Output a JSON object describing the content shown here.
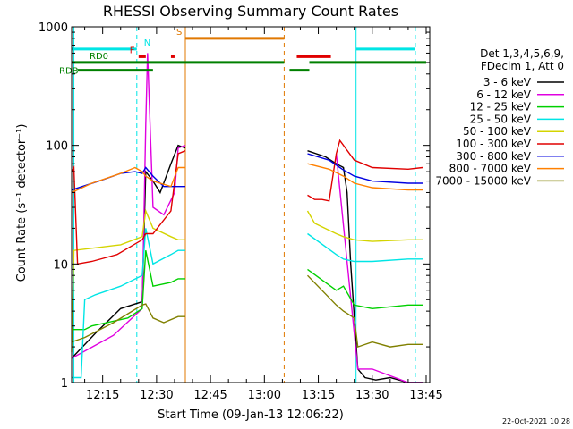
{
  "chart_data": {
    "type": "line",
    "title": "RHESSI Observing Summary Count Rates",
    "xlabel": "Start Time (09-Jan-13 12:06:22)",
    "ylabel": "Count Rate (s⁻¹ detector⁻¹)",
    "yscale": "log",
    "ylim": [
      1,
      1000
    ],
    "xlim": [
      "12:06:22",
      "13:46:00"
    ],
    "x_ticks": [
      "12:15",
      "12:30",
      "12:45",
      "13:00",
      "13:15",
      "13:30",
      "13:45"
    ],
    "y_ticks": [
      "1",
      "10",
      "100",
      "1000"
    ],
    "legend_header": [
      "Det 1,3,4,5,6,9,",
      "FDecim 1, Att 0"
    ],
    "legend_position": "right",
    "timestamp": "22-Oct-2021 10:28",
    "data_gap": [
      "12:38:00",
      "13:12:00"
    ],
    "vertical_markers": [
      {
        "time": "12:07:00",
        "color": "#00e5e5",
        "style": "solid"
      },
      {
        "time": "12:24:30",
        "color": "#00e5e5",
        "style": "dashed"
      },
      {
        "time": "12:38:00",
        "color": "#e07800",
        "style": "solid"
      },
      {
        "time": "13:05:30",
        "color": "#e07800",
        "style": "dashed"
      },
      {
        "time": "13:25:30",
        "color": "#00e5e5",
        "style": "solid"
      },
      {
        "time": "13:42:00",
        "color": "#00e5e5",
        "style": "dashed"
      }
    ],
    "flag_bars": [
      {
        "label": "N",
        "color": "#00e5e5",
        "label_color": "#00e5e5",
        "y": 650,
        "segments": [
          [
            "12:06:22",
            "12:24:30"
          ],
          [
            "13:25:30",
            "13:42:00"
          ]
        ]
      },
      {
        "label": "S",
        "color": "#e07800",
        "label_color": "#e07800",
        "y": 800,
        "segments": [
          [
            "12:38:00",
            "13:05:30"
          ]
        ]
      },
      {
        "label": "F",
        "color": "#e00000",
        "label_color": "#e00000",
        "y": 560,
        "segments": [
          [
            "12:25:00",
            "12:27:00"
          ],
          [
            "12:34:00",
            "12:35:00"
          ],
          [
            "13:09:00",
            "13:18:30"
          ]
        ]
      },
      {
        "label": "RD0",
        "color": "#008000",
        "label_color": "#008000",
        "y": 500,
        "segments": [
          [
            "12:06:22",
            "13:05:30"
          ],
          [
            "13:12:30",
            "13:45:00"
          ]
        ]
      },
      {
        "label": "RDB",
        "color": "#008000",
        "label_color": "#008000",
        "y": 430,
        "segments": [
          [
            "12:08:00",
            "12:29:00"
          ],
          [
            "13:07:00",
            "13:12:30"
          ]
        ]
      }
    ],
    "series": [
      {
        "name": "3 - 6 keV",
        "color": "#000000",
        "x": [
          "12:06:22",
          "12:13",
          "12:20",
          "12:26",
          "12:27",
          "12:29",
          "12:31",
          "12:34",
          "12:36",
          "12:38",
          "13:12",
          "13:17",
          "13:20",
          "13:22",
          "13:23",
          "13:24",
          "13:26",
          "13:28",
          "13:31",
          "13:35",
          "13:40",
          "13:44"
        ],
        "y": [
          1.6,
          2.6,
          4.2,
          4.8,
          60,
          50,
          40,
          70,
          100,
          95,
          90,
          80,
          70,
          65,
          40,
          10,
          1.3,
          1.1,
          1.05,
          1.1,
          1.0,
          1.0
        ]
      },
      {
        "name": "6 - 12 keV",
        "color": "#e000e0",
        "x": [
          "12:06:22",
          "12:18",
          "12:26",
          "12:27",
          "12:27.5",
          "12:29",
          "12:32",
          "12:35",
          "12:36",
          "12:38",
          "13:20",
          "13:26",
          "13:30",
          "13:40",
          "13:44"
        ],
        "y": [
          1.6,
          2.5,
          4.2,
          150,
          600,
          30,
          26,
          40,
          95,
          100,
          85,
          1.3,
          1.3,
          1.0,
          1.0
        ]
      },
      {
        "name": "12 - 25 keV",
        "color": "#00d000",
        "x": [
          "12:06:22",
          "12:10",
          "12:12",
          "12:22",
          "12:26",
          "12:27",
          "12:29",
          "12:34",
          "12:36",
          "12:38",
          "13:12",
          "13:20",
          "13:22",
          "13:25",
          "13:30",
          "13:40",
          "13:44"
        ],
        "y": [
          2.8,
          2.8,
          3.0,
          3.5,
          4.2,
          13,
          6.5,
          7.0,
          7.5,
          7.5,
          9,
          6,
          6.5,
          4.5,
          4.2,
          4.5,
          4.5
        ]
      },
      {
        "name": "25 - 50 keV",
        "color": "#00e5e5",
        "x": [
          "12:06:22",
          "12:09",
          "12:10",
          "12:13",
          "12:20",
          "12:26",
          "12:27",
          "12:29",
          "12:34",
          "12:36",
          "12:38",
          "13:12",
          "13:20",
          "13:22",
          "13:25",
          "13:30",
          "13:40",
          "13:44"
        ],
        "y": [
          1.1,
          1.1,
          5,
          5.5,
          6.5,
          8,
          20,
          10,
          12,
          13,
          13,
          18,
          12,
          11,
          10.5,
          10.5,
          11,
          11
        ]
      },
      {
        "name": "50 - 100 keV",
        "color": "#d4d400",
        "x": [
          "12:06:22",
          "12:07",
          "12:20",
          "12:26",
          "12:27",
          "12:29",
          "12:34",
          "12:36",
          "12:38",
          "13:12",
          "13:14",
          "13:20",
          "13:22",
          "13:25",
          "13:30",
          "13:40",
          "13:44"
        ],
        "y": [
          1.8,
          13,
          14.5,
          17,
          28,
          20,
          17,
          16,
          16,
          28,
          22,
          18,
          17,
          16,
          15.5,
          16,
          16
        ]
      },
      {
        "name": "100 - 300 keV",
        "color": "#e00000",
        "x": [
          "12:06:22",
          "12:07",
          "12:08",
          "12:12",
          "12:19",
          "12:26",
          "12:27",
          "12:29",
          "12:34",
          "12:36",
          "12:38",
          "13:12",
          "13:14",
          "13:16",
          "13:18",
          "13:20",
          "13:21",
          "13:25",
          "13:30",
          "13:40",
          "13:44"
        ],
        "y": [
          60,
          65,
          10,
          10.5,
          12,
          16,
          18,
          18,
          28,
          85,
          90,
          38,
          35,
          35,
          34,
          85,
          110,
          75,
          65,
          63,
          65
        ]
      },
      {
        "name": "300 - 800 keV",
        "color": "#0000e0",
        "x": [
          "12:06:22",
          "12:14",
          "12:20",
          "12:24",
          "12:26",
          "12:27",
          "12:29",
          "12:32",
          "12:35",
          "12:38",
          "13:12",
          "13:18",
          "13:22",
          "13:25",
          "13:30",
          "13:40",
          "13:44"
        ],
        "y": [
          42,
          50,
          58,
          60,
          58,
          65,
          55,
          45,
          45,
          45,
          85,
          75,
          62,
          55,
          50,
          48,
          48
        ]
      },
      {
        "name": "800 - 7000 keV",
        "color": "#ff8000",
        "x": [
          "12:06:22",
          "12:12",
          "12:20",
          "12:24",
          "12:26",
          "12:27",
          "12:29",
          "12:34",
          "12:36",
          "12:38",
          "13:12",
          "13:18",
          "13:22",
          "13:25",
          "13:30",
          "13:40",
          "13:44"
        ],
        "y": [
          40,
          48,
          58,
          65,
          60,
          55,
          50,
          45,
          65,
          65,
          70,
          63,
          55,
          48,
          44,
          42,
          42
        ]
      },
      {
        "name": "7000 - 15000 keV",
        "color": "#808000",
        "x": [
          "12:06:22",
          "12:10",
          "12:18",
          "12:22",
          "12:26",
          "12:27",
          "12:29",
          "12:32",
          "12:36",
          "12:38",
          "13:12",
          "13:16",
          "13:20",
          "13:22",
          "13:25",
          "13:26",
          "13:30",
          "13:35",
          "13:40",
          "13:44"
        ],
        "y": [
          2.2,
          2.4,
          3.2,
          3.8,
          4.5,
          4.6,
          3.5,
          3.2,
          3.6,
          3.6,
          8,
          6,
          4.5,
          4.0,
          3.5,
          2.0,
          2.2,
          2.0,
          2.1,
          2.1
        ]
      }
    ]
  }
}
